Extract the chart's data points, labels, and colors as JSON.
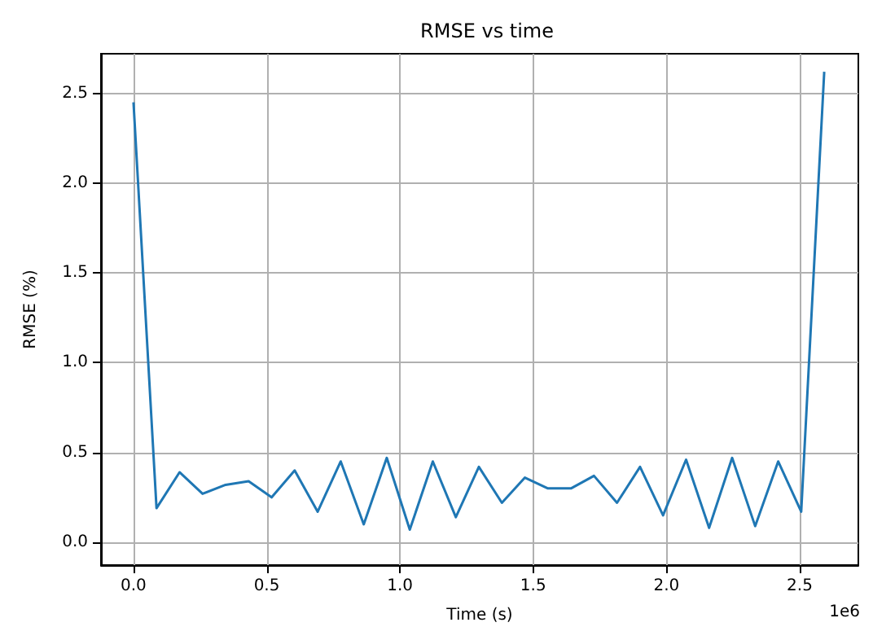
{
  "chart_data": {
    "type": "line",
    "title": "RMSE vs time",
    "xlabel": "Time (s)",
    "ylabel": "RMSE (%)",
    "x": [
      0,
      0.0864,
      0.1728,
      0.2592,
      0.3456,
      0.432,
      0.5184,
      0.6048,
      0.6912,
      0.7776,
      0.864,
      0.9504,
      1.0368,
      1.1232,
      1.2096,
      1.296,
      1.3824,
      1.4688,
      1.5552,
      1.6416,
      1.728,
      1.8144,
      1.9008,
      1.9872,
      2.0736,
      2.16,
      2.2464,
      2.3328,
      2.4192,
      2.5056,
      2.592
    ],
    "series": [
      {
        "color": "#1f77b4",
        "values": [
          2.45,
          0.19,
          0.39,
          0.27,
          0.32,
          0.34,
          0.25,
          0.4,
          0.17,
          0.45,
          0.1,
          0.47,
          0.07,
          0.45,
          0.14,
          0.42,
          0.22,
          0.36,
          0.3,
          0.3,
          0.37,
          0.22,
          0.42,
          0.15,
          0.46,
          0.08,
          0.47,
          0.09,
          0.45,
          0.17,
          2.62
        ]
      }
    ],
    "xlim": [
      -0.122,
      2.72
    ],
    "xticks": [
      {
        "value": 0,
        "label": "0.0"
      },
      {
        "value": 0.5,
        "label": "0.5"
      },
      {
        "value": 1,
        "label": "1.0"
      },
      {
        "value": 1.5,
        "label": "1.5"
      },
      {
        "value": 2,
        "label": "2.0"
      },
      {
        "value": 2.5,
        "label": "2.5"
      }
    ],
    "ylim": [
      -0.127,
      2.72
    ],
    "yticks": [
      {
        "value": 0,
        "label": "0.0"
      },
      {
        "value": 0.5,
        "label": "0.5"
      },
      {
        "value": 1,
        "label": "1.0"
      },
      {
        "value": 1.5,
        "label": "1.5"
      },
      {
        "value": 2,
        "label": "2.0"
      },
      {
        "value": 2.5,
        "label": "2.5"
      }
    ],
    "grid": true,
    "annotations": [
      "1e6"
    ]
  }
}
